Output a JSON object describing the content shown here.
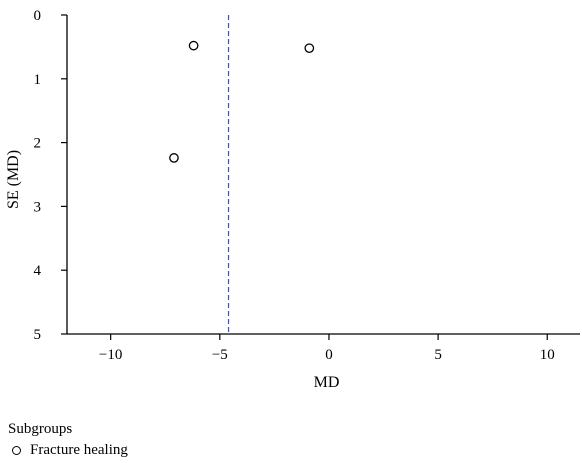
{
  "chart_data": {
    "type": "scatter",
    "subtype": "funnel-plot",
    "xlabel": "MD",
    "ylabel": "SE (MD)",
    "xlim": [
      -12,
      11.5
    ],
    "ylim": [
      5,
      0
    ],
    "y_inverted": true,
    "x_ticks": [
      -10,
      -5,
      0,
      5,
      10
    ],
    "x_tick_labels": [
      "−10",
      "−5",
      "0",
      "5",
      "10"
    ],
    "y_ticks": [
      0,
      1,
      2,
      3,
      4,
      5
    ],
    "y_tick_labels": [
      "0",
      "1",
      "2",
      "3",
      "4",
      "5"
    ],
    "series": [
      {
        "name": "Fracture healing",
        "marker": "open-circle",
        "points": [
          {
            "x": -6.2,
            "y": 0.48
          },
          {
            "x": -0.9,
            "y": 0.52
          },
          {
            "x": -7.1,
            "y": 2.24
          }
        ]
      }
    ],
    "reference_line": {
      "x": -4.6,
      "style": "dashed",
      "color": "#3a4ec8"
    },
    "grid": false
  },
  "legend": {
    "title": "Subgroups",
    "items": [
      {
        "label": "Fracture healing",
        "marker": "open-circle"
      }
    ]
  }
}
